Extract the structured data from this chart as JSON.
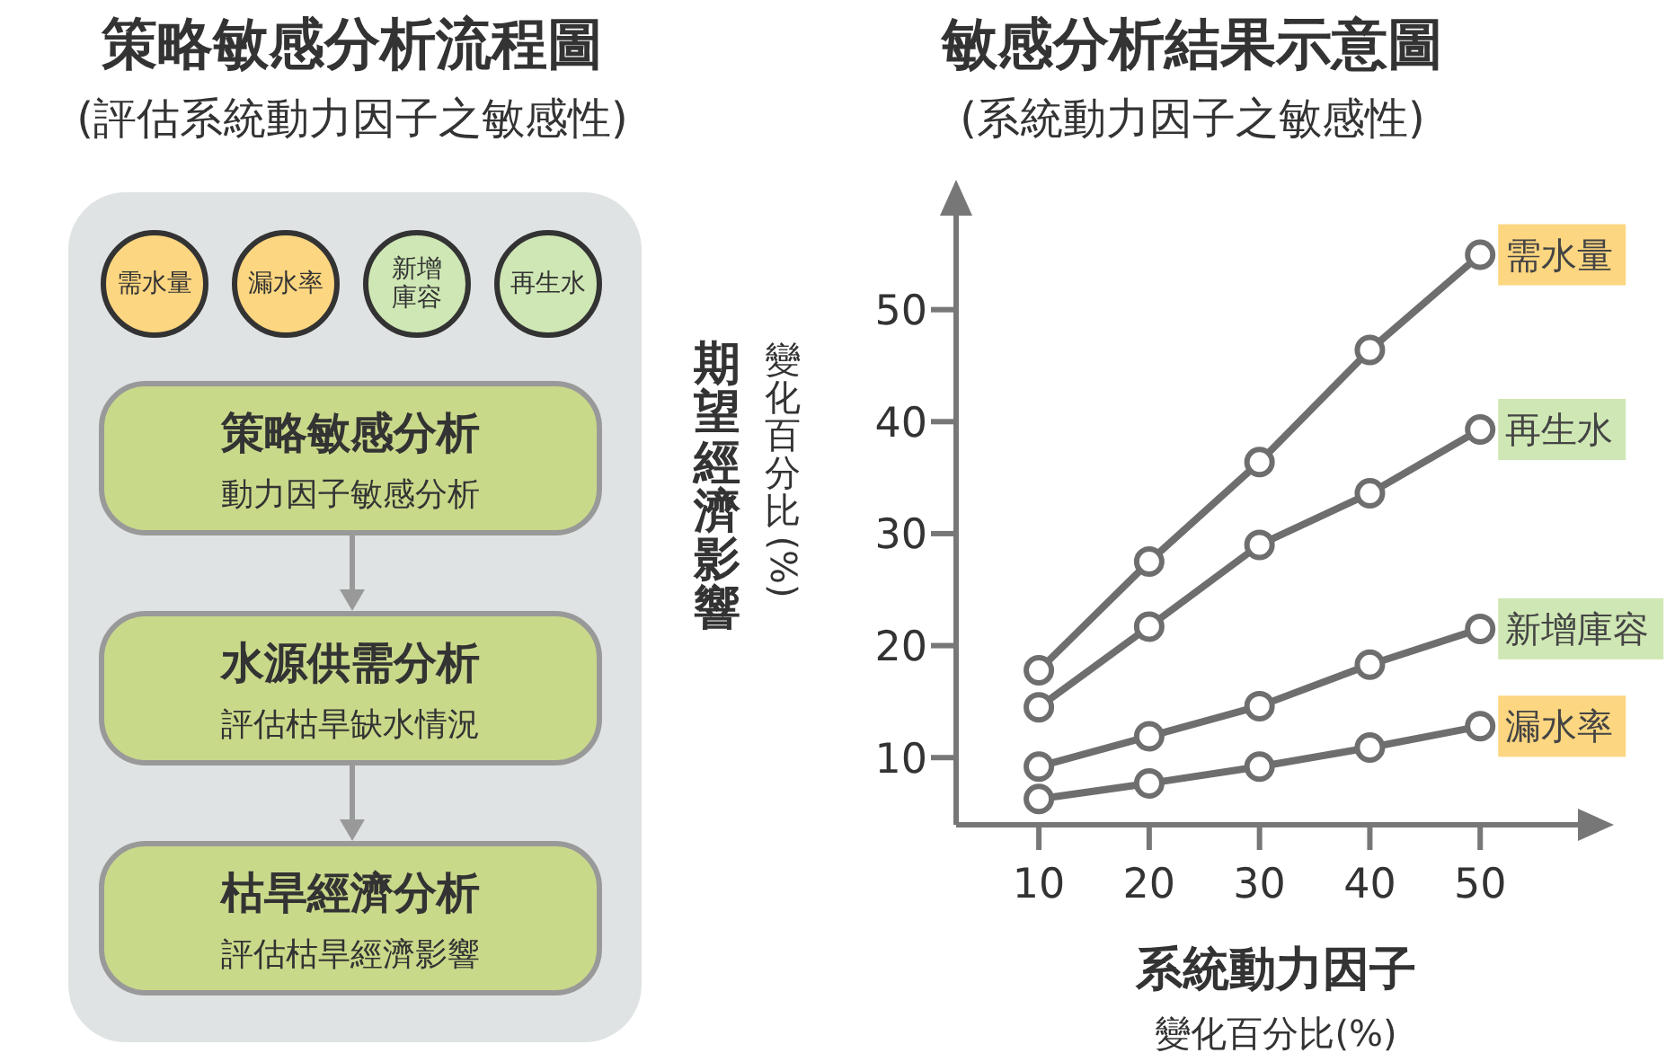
{
  "chart_data": [
    {
      "type": "other",
      "title": "策略敏感分析流程圖",
      "subtitle": "(評估系統動力因子之敏感性)",
      "annotations": [
        "需水量",
        "漏水率",
        "新增庫容",
        "再生水",
        "策略敏感分析",
        "動力因子敏感分析",
        "水源供需分析",
        "評估枯旱缺水情況",
        "枯旱經濟分析",
        "評估枯旱經濟影響"
      ]
    },
    {
      "type": "line",
      "title": "敏感分析結果示意圖",
      "subtitle": "(系統動力因子之敏感性)",
      "xlabel": "系統動力因子",
      "ylabel": "期望經濟影響",
      "annotations": [
        "變化百分比(%)",
        "變化百分比(%)"
      ],
      "x": [
        10,
        20,
        30,
        40,
        50
      ],
      "xlim": [
        2.5,
        60
      ],
      "xticks": [
        10,
        20,
        30,
        40,
        50
      ],
      "ylim": [
        4,
        60
      ],
      "yticks": [
        10,
        20,
        30,
        40,
        50
      ],
      "marker": "circle",
      "line_style": "solid",
      "series": [
        {
          "name": "需水量",
          "color": "#6e6e6e",
          "values": [
            17.8,
            27.5,
            36.4,
            46.4,
            54.9
          ]
        },
        {
          "name": "再生水",
          "color": "#6e6e6e",
          "values": [
            14.5,
            21.7,
            29.0,
            33.6,
            39.3
          ]
        },
        {
          "name": "新增庫容",
          "color": "#6e6e6e",
          "values": [
            9.2,
            11.9,
            14.6,
            18.3,
            21.5
          ]
        },
        {
          "name": "漏水率",
          "color": "#6e6e6e",
          "values": [
            6.3,
            7.7,
            9.2,
            10.9,
            12.8
          ]
        }
      ]
    }
  ]
}
